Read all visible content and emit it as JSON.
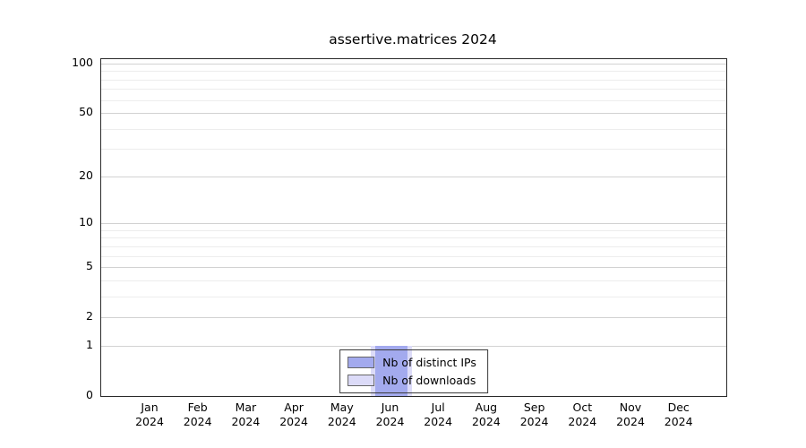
{
  "chart_data": {
    "type": "bar",
    "title": "assertive.matrices 2024",
    "x_labels": [
      {
        "month": "Jan",
        "year": "2024"
      },
      {
        "month": "Feb",
        "year": "2024"
      },
      {
        "month": "Mar",
        "year": "2024"
      },
      {
        "month": "Apr",
        "year": "2024"
      },
      {
        "month": "May",
        "year": "2024"
      },
      {
        "month": "Jun",
        "year": "2024"
      },
      {
        "month": "Jul",
        "year": "2024"
      },
      {
        "month": "Aug",
        "year": "2024"
      },
      {
        "month": "Sep",
        "year": "2024"
      },
      {
        "month": "Oct",
        "year": "2024"
      },
      {
        "month": "Nov",
        "year": "2024"
      },
      {
        "month": "Dec",
        "year": "2024"
      }
    ],
    "series": [
      {
        "name": "Nb of distinct IPs",
        "color": "#a3aaee",
        "values": [
          0,
          0,
          0,
          0,
          0,
          1,
          0,
          0,
          0,
          0,
          0,
          0
        ]
      },
      {
        "name": "Nb of downloads",
        "color": "#dcdbf8",
        "values": [
          0,
          0,
          0,
          0,
          0,
          1,
          0,
          0,
          0,
          0,
          0,
          0
        ]
      }
    ],
    "yscale": "log10(v+1)",
    "ylim": [
      0,
      100
    ],
    "yticks": [
      100,
      50,
      20,
      10,
      5,
      2,
      1,
      0
    ],
    "minor_gridlines": [
      1,
      2,
      3,
      4,
      5,
      6,
      7,
      8,
      9,
      10,
      20,
      30,
      40,
      50,
      60,
      70,
      80,
      90,
      100
    ],
    "grid": true,
    "legend_position": "bottom-center"
  }
}
